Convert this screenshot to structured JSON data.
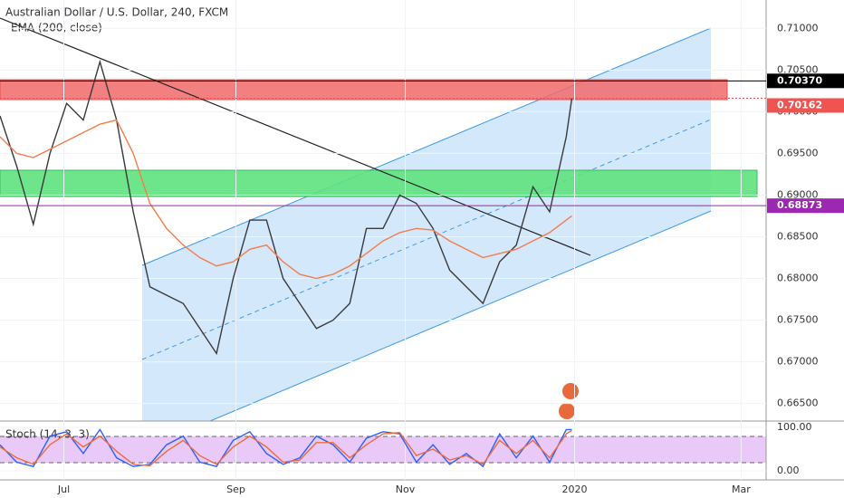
{
  "chart_data": [
    {
      "type": "line",
      "title": "Australian Dollar / U.S. Dollar, 240, FXCM",
      "x": [
        7,
        13,
        19,
        25,
        31,
        37,
        43,
        49,
        55,
        61,
        67,
        73,
        79,
        85,
        91,
        97,
        103,
        109,
        115,
        121,
        127,
        133,
        139,
        145,
        151,
        157,
        163,
        169,
        175,
        181,
        187,
        193,
        199,
        205,
        211,
        213
      ],
      "xlim": [
        7,
        283
      ],
      "xticks": [
        {
          "value": 30,
          "label": "Jul"
        },
        {
          "value": 92,
          "label": "Sep"
        },
        {
          "value": 153,
          "label": "Nov"
        },
        {
          "value": 214,
          "label": "2020"
        },
        {
          "value": 274,
          "label": "Mar"
        }
      ],
      "ylim": [
        0.6629,
        0.7134
      ],
      "yticks": [
        {
          "value": 0.665,
          "label": "0.66500"
        },
        {
          "value": 0.67,
          "label": "0.67000"
        },
        {
          "value": 0.675,
          "label": "0.67500"
        },
        {
          "value": 0.68,
          "label": "0.68000"
        },
        {
          "value": 0.685,
          "label": "0.68500"
        },
        {
          "value": 0.69,
          "label": "0.69000"
        },
        {
          "value": 0.695,
          "label": "0.69500"
        },
        {
          "value": 0.7,
          "label": "0.70000"
        },
        {
          "value": 0.705,
          "label": "0.70500"
        },
        {
          "value": 0.71,
          "label": "0.71000"
        }
      ],
      "levels": [
        {
          "value": 0.7037,
          "label": "0.70370",
          "color": "#000000"
        },
        {
          "value": 0.70162,
          "label": "0.70162",
          "color": "#f05350"
        },
        {
          "value": 0.68873,
          "label": "0.68873",
          "color": "#9c27b0"
        }
      ],
      "series": [
        {
          "color": "#3a3a3a",
          "values": [
            0.6995,
            0.6935,
            0.6865,
            0.695,
            0.701,
            0.699,
            0.706,
            0.699,
            0.688,
            0.679,
            0.678,
            0.677,
            0.674,
            0.671,
            0.68,
            0.687,
            0.687,
            0.68,
            0.677,
            0.674,
            0.675,
            0.677,
            0.686,
            0.686,
            0.69,
            0.689,
            0.686,
            0.681,
            0.679,
            0.677,
            0.682,
            0.684,
            0.691,
            0.688,
            0.697,
            0.7016
          ]
        },
        {
          "name": "EMA (200, close)",
          "color": "#f57c4b",
          "values": [
            0.697,
            0.695,
            0.6945,
            0.6955,
            0.6965,
            0.6975,
            0.6985,
            0.699,
            0.695,
            0.689,
            0.686,
            0.684,
            0.6825,
            0.6815,
            0.682,
            0.6835,
            0.684,
            0.682,
            0.6805,
            0.68,
            0.6805,
            0.6815,
            0.683,
            0.6845,
            0.6855,
            0.686,
            0.6858,
            0.6845,
            0.6835,
            0.6825,
            0.683,
            0.6835,
            0.6845,
            0.6855,
            0.687,
            0.6875
          ]
        }
      ]
    },
    {
      "type": "line",
      "title": "Stoch (14, 3, 3)",
      "x": [
        7,
        13,
        19,
        25,
        31,
        37,
        43,
        49,
        55,
        61,
        67,
        73,
        79,
        85,
        91,
        97,
        103,
        109,
        115,
        121,
        127,
        133,
        139,
        145,
        151,
        157,
        163,
        169,
        175,
        181,
        187,
        193,
        199,
        205,
        211,
        213
      ],
      "xlim": [
        7,
        283
      ],
      "ylim": [
        -20.8,
        114.6
      ],
      "yticks": [
        {
          "value": 0,
          "label": "0.00"
        },
        {
          "value": 100,
          "label": "100.00"
        }
      ],
      "series": [
        {
          "color": "#2962ff",
          "values": [
            60,
            20,
            10,
            80,
            90,
            40,
            95,
            30,
            10,
            15,
            60,
            80,
            20,
            10,
            70,
            90,
            40,
            15,
            30,
            80,
            60,
            20,
            75,
            90,
            85,
            20,
            60,
            15,
            40,
            10,
            85,
            30,
            80,
            20,
            95,
            95
          ]
        },
        {
          "color": "#ef6c3a",
          "values": [
            55,
            30,
            15,
            60,
            85,
            55,
            80,
            45,
            15,
            12,
            45,
            70,
            35,
            15,
            55,
            80,
            55,
            20,
            25,
            65,
            65,
            30,
            60,
            85,
            88,
            35,
            50,
            25,
            35,
            15,
            70,
            40,
            70,
            30,
            85,
            93
          ]
        }
      ]
    }
  ]
}
